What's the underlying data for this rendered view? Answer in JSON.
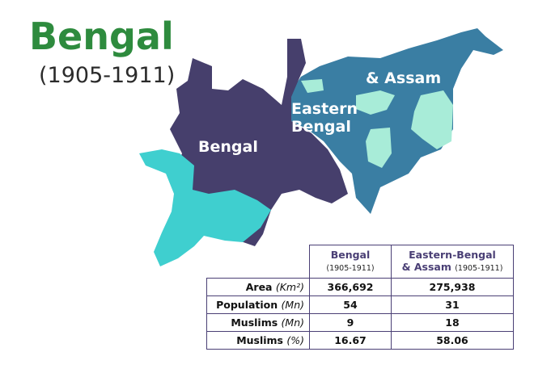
{
  "header": {
    "title": "Bengal",
    "subtitle": "(1905-1911)"
  },
  "map": {
    "labels": [
      "Bengal",
      "Eastern",
      "Bengal",
      "& Assam"
    ]
  },
  "table": {
    "columns": [
      {
        "name": "Bengal",
        "period": "(1905-1911)"
      },
      {
        "name": "Eastern-Bengal",
        "name2": "& Assam",
        "period": "(1905-1911)"
      }
    ],
    "rows": [
      {
        "label": "Area",
        "unit": "(Km²)",
        "values": [
          "366,692",
          "275,938"
        ]
      },
      {
        "label": "Population",
        "unit": "(Mn)",
        "values": [
          "54",
          "31"
        ]
      },
      {
        "label": "Muslims",
        "unit": "(Mn)",
        "values": [
          "9",
          "18"
        ]
      },
      {
        "label": "Muslims",
        "unit": "(%)",
        "values": [
          "16.67",
          "58.06"
        ]
      }
    ]
  }
}
